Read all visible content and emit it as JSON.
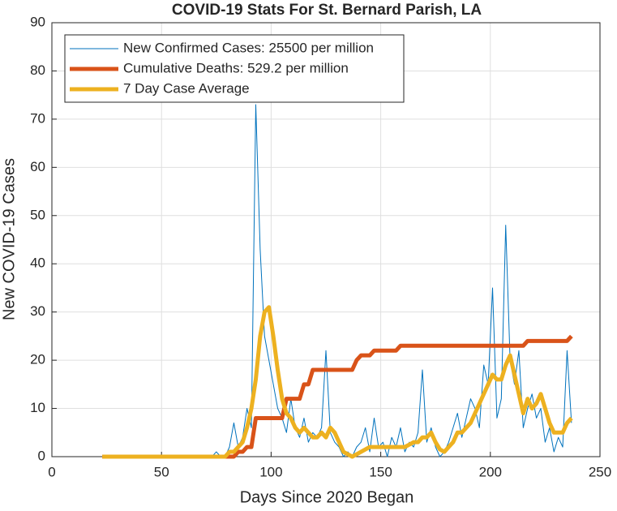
{
  "chart_data": {
    "type": "line",
    "title": "COVID-19 Stats For St. Bernard Parish, LA",
    "x_label": "Days Since 2020 Began",
    "y_label": "New COVID-19 Cases",
    "xlim": [
      0,
      250
    ],
    "xticks": [
      0,
      50,
      100,
      150,
      200,
      250
    ],
    "ylim": [
      0,
      90
    ],
    "yticks": [
      0,
      10,
      20,
      30,
      40,
      50,
      60,
      70,
      80,
      90
    ],
    "grid": true,
    "legend": "upper left",
    "x": [
      23,
      25,
      27,
      29,
      31,
      33,
      35,
      37,
      39,
      41,
      43,
      45,
      47,
      49,
      51,
      53,
      55,
      57,
      59,
      61,
      63,
      65,
      67,
      69,
      71,
      73,
      75,
      77,
      79,
      81,
      83,
      85,
      87,
      89,
      91,
      93,
      95,
      97,
      99,
      101,
      103,
      105,
      107,
      109,
      111,
      113,
      115,
      117,
      119,
      121,
      123,
      125,
      127,
      129,
      131,
      133,
      135,
      137,
      139,
      141,
      143,
      145,
      147,
      149,
      151,
      153,
      155,
      157,
      159,
      161,
      163,
      165,
      167,
      169,
      171,
      173,
      175,
      177,
      179,
      181,
      183,
      185,
      187,
      189,
      191,
      193,
      195,
      197,
      199,
      201,
      203,
      205,
      207,
      209,
      211,
      213,
      215,
      217,
      219,
      221,
      223,
      225,
      227,
      229,
      231,
      233,
      235,
      237
    ],
    "series": [
      {
        "name": "New Confirmed Cases: 25500 per million",
        "color": "#0072bd",
        "values": [
          0,
          0,
          0,
          0,
          0,
          0,
          0,
          0,
          0,
          0,
          0,
          0,
          0,
          0,
          0,
          0,
          0,
          0,
          0,
          0,
          0,
          0,
          0,
          0,
          0,
          0,
          1,
          0,
          0,
          2,
          7,
          2,
          4,
          10,
          6,
          73,
          43,
          25,
          20,
          15,
          10,
          8,
          5,
          12,
          6,
          4,
          8,
          3,
          5,
          4,
          6,
          22,
          5,
          3,
          2,
          0,
          1,
          0,
          2,
          3,
          6,
          1,
          8,
          2,
          3,
          0,
          4,
          2,
          6,
          1,
          3,
          2,
          5,
          18,
          3,
          6,
          2,
          0,
          1,
          3,
          6,
          9,
          4,
          8,
          12,
          10,
          6,
          19,
          15,
          35,
          8,
          12,
          48,
          20,
          15,
          22,
          6,
          10,
          13,
          8,
          10,
          3,
          6,
          1,
          4,
          2,
          22,
          7
        ]
      },
      {
        "name": "Cumulative Deaths: 529.2 per million",
        "color": "#d95319",
        "values": [
          0,
          0,
          0,
          0,
          0,
          0,
          0,
          0,
          0,
          0,
          0,
          0,
          0,
          0,
          0,
          0,
          0,
          0,
          0,
          0,
          0,
          0,
          0,
          0,
          0,
          0,
          0,
          0,
          0,
          0,
          0,
          1,
          1,
          2,
          2,
          8,
          8,
          8,
          8,
          8,
          8,
          8,
          12,
          12,
          12,
          12,
          15,
          15,
          18,
          18,
          18,
          18,
          18,
          18,
          18,
          18,
          18,
          18,
          20,
          21,
          21,
          21,
          22,
          22,
          22,
          22,
          22,
          22,
          23,
          23,
          23,
          23,
          23,
          23,
          23,
          23,
          23,
          23,
          23,
          23,
          23,
          23,
          23,
          23,
          23,
          23,
          23,
          23,
          23,
          23,
          23,
          23,
          23,
          23,
          23,
          23,
          23,
          24,
          24,
          24,
          24,
          24,
          24,
          24,
          24,
          24,
          24,
          25
        ]
      },
      {
        "name": "7 Day Case Average",
        "color": "#edb120",
        "values": [
          0,
          0,
          0,
          0,
          0,
          0,
          0,
          0,
          0,
          0,
          0,
          0,
          0,
          0,
          0,
          0,
          0,
          0,
          0,
          0,
          0,
          0,
          0,
          0,
          0,
          0,
          0,
          0,
          0,
          1,
          1,
          2,
          3,
          6,
          10,
          16,
          25,
          30,
          31,
          25,
          18,
          12,
          9,
          8,
          6,
          5,
          6,
          5,
          4,
          4,
          5,
          4,
          6,
          5,
          3,
          1,
          0.5,
          0,
          0.5,
          1,
          1.5,
          2,
          2,
          2,
          2,
          2,
          2,
          2,
          2,
          2,
          2.5,
          3,
          3,
          4,
          4,
          5,
          3,
          1.5,
          1,
          2,
          3,
          5,
          5,
          6,
          7,
          9,
          11,
          13,
          15,
          17,
          16,
          16,
          19,
          21,
          17,
          13,
          9,
          12,
          10,
          11,
          13,
          10,
          7,
          5,
          5,
          5,
          7,
          8
        ]
      }
    ]
  }
}
